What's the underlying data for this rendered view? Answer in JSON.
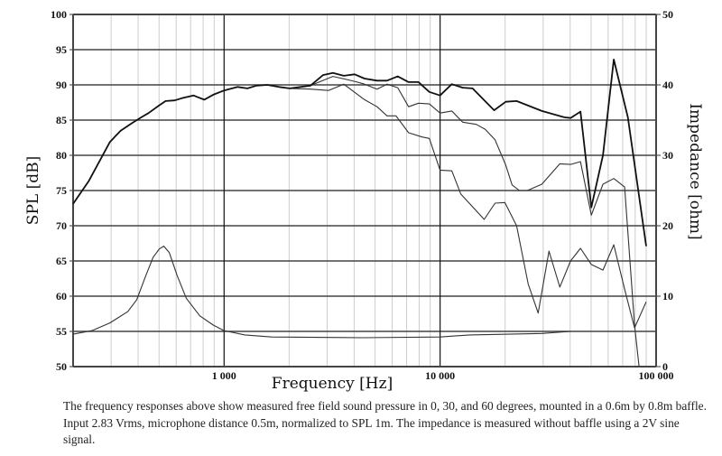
{
  "chart_data": {
    "type": "line",
    "xlabel": "Frequency [Hz]",
    "ylabel": "SPL [dB]",
    "y2label": "Impedance [ohm]",
    "xscale": "log",
    "xlim": [
      200,
      100000
    ],
    "ylim": [
      50,
      100
    ],
    "y2lim": [
      0,
      50
    ],
    "grid": true,
    "x_tick_labels": [
      {
        "value": 1000,
        "label": "1 000"
      },
      {
        "value": 10000,
        "label": "10 000"
      },
      {
        "value": 100000,
        "label": "100 000"
      }
    ],
    "y_ticks": [
      50,
      55,
      60,
      65,
      70,
      75,
      80,
      85,
      90,
      95,
      100
    ],
    "y2_ticks": [
      0,
      10,
      20,
      30,
      40,
      50
    ],
    "colors": {
      "spl_0": "#111111",
      "spl_30": "#333333",
      "spl_60": "#333333",
      "impedance": "#333333",
      "grid_major": "#444444",
      "grid_minor": "#cccccc"
    },
    "series": [
      {
        "axis": "left",
        "x": [
          200,
          237,
          296,
          332,
          376,
          414,
          447,
          501,
          536,
          590,
          637,
          722,
          750,
          809,
          891,
          1000,
          1155,
          1283,
          1413,
          1585,
          1795,
          2014,
          2512,
          2873,
          3190,
          3580,
          4018,
          4467,
          5108,
          5675,
          6368,
          7145,
          7943,
          8913,
          10000,
          11330,
          12710,
          14130,
          17780,
          20140,
          22600,
          29580,
          37580,
          40180,
          44670,
          50120,
          56750,
          63680,
          74000,
          89950
        ],
        "y": [
          73.1,
          76.4,
          81.9,
          83.5,
          84.6,
          85.4,
          86.0,
          87.1,
          87.7,
          87.8,
          88.1,
          88.5,
          88.3,
          87.9,
          88.6,
          89.2,
          89.7,
          89.5,
          89.9,
          90.0,
          89.7,
          89.5,
          89.9,
          91.4,
          91.7,
          91.3,
          91.5,
          90.9,
          90.6,
          90.6,
          91.2,
          90.4,
          90.4,
          89.0,
          88.5,
          90.1,
          89.6,
          89.5,
          86.4,
          87.6,
          87.7,
          86.3,
          85.4,
          85.3,
          86.2,
          72.6,
          80.0,
          93.6,
          85.4,
          67.1
        ]
      },
      {
        "axis": "left",
        "x": [
          200,
          237,
          296,
          332,
          376,
          414,
          447,
          501,
          536,
          590,
          637,
          722,
          750,
          809,
          891,
          1000,
          1155,
          1283,
          1413,
          1585,
          1795,
          2014,
          2512,
          3190,
          4018,
          4467,
          5108,
          5675,
          6368,
          7145,
          7943,
          8913,
          10000,
          11330,
          12710,
          14680,
          16150,
          17950,
          20140,
          21540,
          23280,
          25350,
          29580,
          35810,
          40180,
          44670,
          50120,
          56750,
          63680,
          71450,
          79430,
          83370
        ],
        "y": [
          73.1,
          76.4,
          81.9,
          83.5,
          84.6,
          85.4,
          86.0,
          87.1,
          87.7,
          87.8,
          88.1,
          88.5,
          88.3,
          87.9,
          88.6,
          89.2,
          89.7,
          89.5,
          89.9,
          90.0,
          89.7,
          89.5,
          89.9,
          91.2,
          90.5,
          90.1,
          89.4,
          90.1,
          89.6,
          86.9,
          87.4,
          87.3,
          86.0,
          86.3,
          84.7,
          84.4,
          83.7,
          82.2,
          78.6,
          75.8,
          75.0,
          75.0,
          75.9,
          78.8,
          78.7,
          79.1,
          71.5,
          75.9,
          76.7,
          75.5,
          55.9,
          50.0
        ]
      },
      {
        "axis": "left",
        "x": [
          200,
          237,
          296,
          332,
          376,
          414,
          447,
          501,
          536,
          590,
          637,
          722,
          750,
          809,
          891,
          1000,
          1155,
          1283,
          1413,
          1585,
          1795,
          2014,
          2512,
          3040,
          3580,
          4467,
          5108,
          5675,
          6248,
          7145,
          8254,
          8913,
          10000,
          11330,
          12470,
          16000,
          17950,
          19950,
          22600,
          25590,
          28450,
          31920,
          35810,
          40180,
          44670,
          50120,
          56750,
          63680,
          71450,
          79430,
          89950
        ],
        "y": [
          73.1,
          76.4,
          81.9,
          83.5,
          84.6,
          85.4,
          86.0,
          87.1,
          87.7,
          87.8,
          88.1,
          88.5,
          88.3,
          87.9,
          88.6,
          89.2,
          89.7,
          89.5,
          89.9,
          90.0,
          89.7,
          89.5,
          89.4,
          89.2,
          90.1,
          87.9,
          86.9,
          85.6,
          85.6,
          83.2,
          82.6,
          82.4,
          77.9,
          77.8,
          74.5,
          70.9,
          73.2,
          73.3,
          70.0,
          61.7,
          57.6,
          66.4,
          61.3,
          65.0,
          66.8,
          64.5,
          63.7,
          67.3,
          61.0,
          55.5,
          59.2
        ]
      },
      {
        "axis": "right",
        "x": [
          200,
          244,
          296,
          358,
          394,
          434,
          469,
          501,
          526,
          557,
          607,
          668,
          772,
          891,
          1000,
          1247,
          1663,
          4340,
          10000,
          13730,
          29580,
          40180
        ],
        "y": [
          4.6,
          5.1,
          6.2,
          7.8,
          9.5,
          12.9,
          15.5,
          16.7,
          17.1,
          16.2,
          12.9,
          9.7,
          7.2,
          5.9,
          5.1,
          4.5,
          4.2,
          4.1,
          4.2,
          4.5,
          4.7,
          5.0
        ]
      }
    ]
  },
  "caption": "The frequency responses above show measured free field sound pressure in 0, 30, and 60 degrees, mounted in a 0.6m by 0.8m baffle. Input 2.83 Vrms, microphone distance 0.5m, normalized to SPL 1m. The impedance is measured without baffle using a 2V sine signal."
}
